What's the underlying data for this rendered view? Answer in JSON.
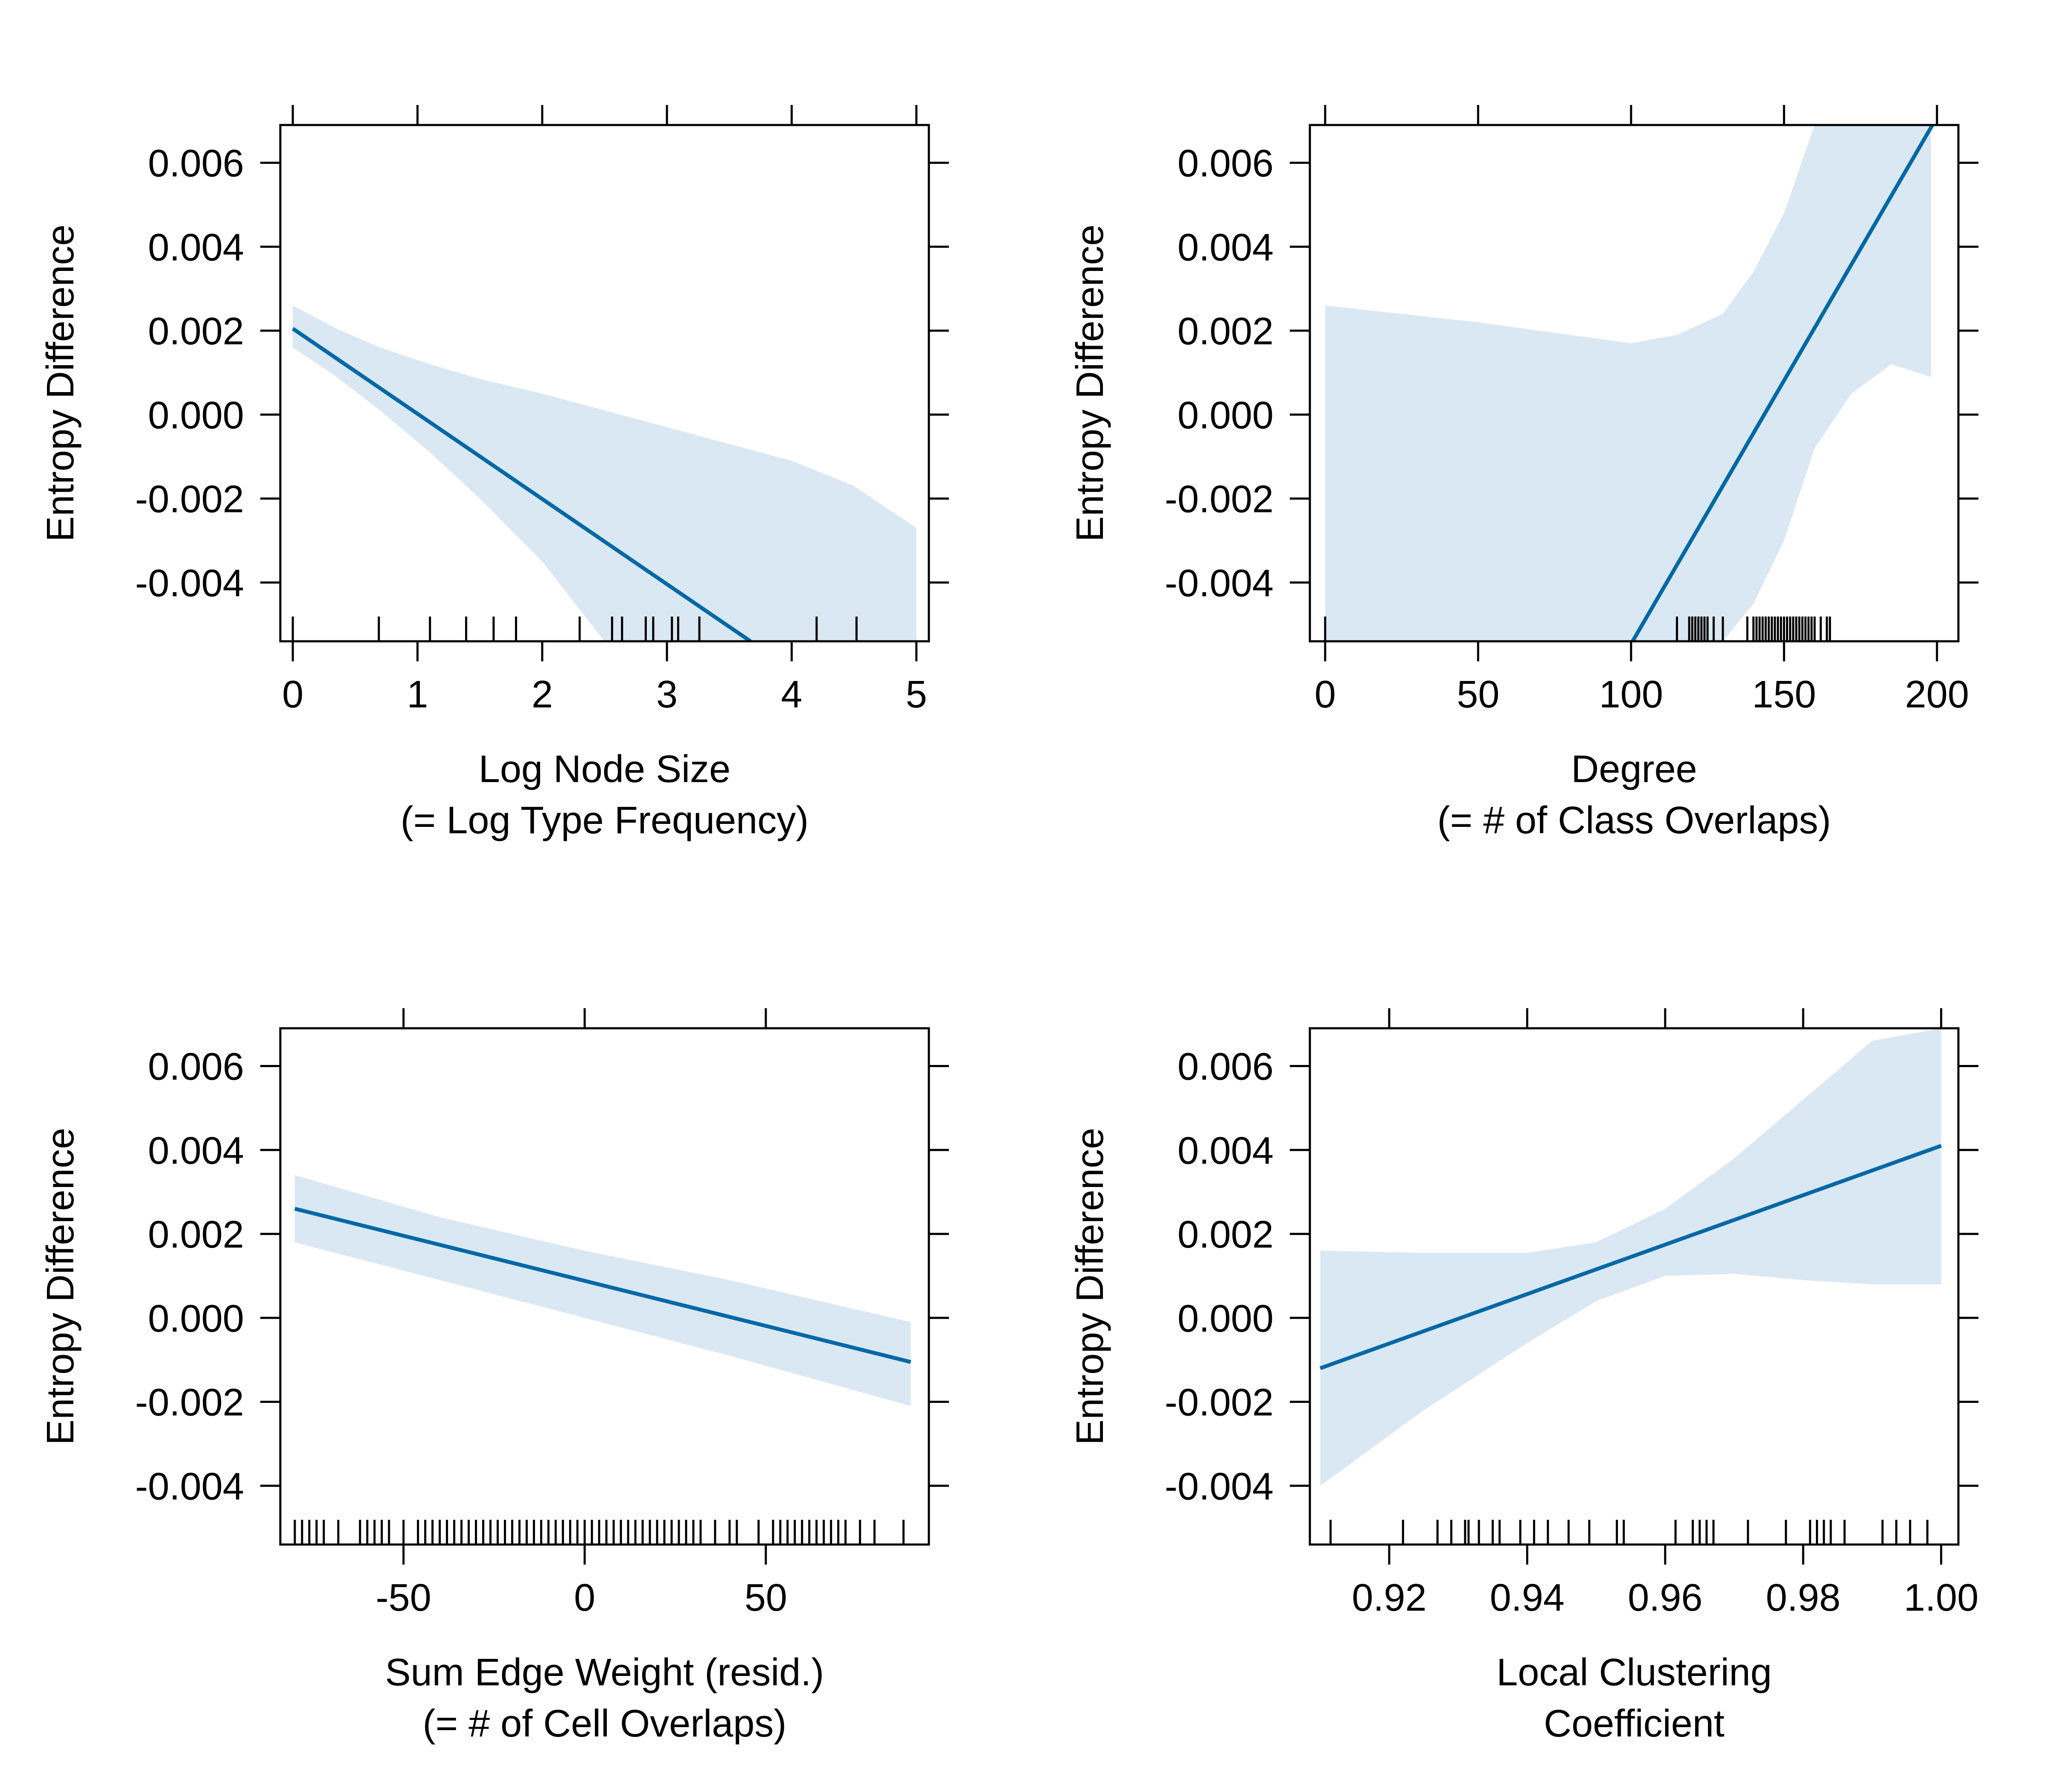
{
  "colors": {
    "line": "#0068A6",
    "band": "#DAE8F3",
    "frame": "#000000",
    "rug": "#000000"
  },
  "chart_data": [
    {
      "type": "line",
      "ylabel": "Entropy Difference",
      "xlabel": [
        "Log Node Size",
        "(= Log Type Frequency)"
      ],
      "xlim": [
        -0.1,
        5.1
      ],
      "ylim": [
        -0.0054,
        0.0069
      ],
      "xticks": [
        0,
        1,
        2,
        3,
        4,
        5
      ],
      "xtick_labels": [
        "0",
        "1",
        "2",
        "3",
        "4",
        "5"
      ],
      "yticks": [
        0.006,
        0.004,
        0.002,
        0.0,
        -0.002,
        -0.004
      ],
      "ytick_labels": [
        "0.006",
        "0.004",
        "0.002",
        "0.000",
        "-0.002",
        "-0.004"
      ],
      "fit": {
        "x": [
          0,
          3.67
        ],
        "y": [
          0.00205,
          -0.0054
        ]
      },
      "band": {
        "x": [
          0,
          0.35,
          0.7,
          1.1,
          1.5,
          2.0,
          2.5,
          3.0,
          3.5,
          4.0,
          4.5,
          5.0
        ],
        "upper": [
          0.0026,
          0.00205,
          0.0016,
          0.0012,
          0.00085,
          0.0005,
          0.0001,
          -0.0003,
          -0.0007,
          -0.0011,
          -0.0017,
          -0.0027
        ],
        "lower": [
          0.0016,
          0.0009,
          0.0001,
          -0.0009,
          -0.002,
          -0.0035,
          -0.0054,
          -0.0054,
          -0.0054,
          -0.0054,
          -0.0054,
          -0.0054
        ]
      },
      "rug": [
        0,
        0.69,
        1.1,
        1.39,
        1.61,
        1.79,
        2.3,
        2.56,
        2.64,
        2.83,
        2.89,
        3.04,
        3.09,
        3.26,
        4.2,
        4.52
      ]
    },
    {
      "type": "line",
      "ylabel": "Entropy Difference",
      "xlabel": [
        "Degree",
        "(= # of Class Overlaps)"
      ],
      "xlim": [
        -5,
        207
      ],
      "ylim": [
        -0.0054,
        0.0069
      ],
      "xticks": [
        0,
        50,
        100,
        150,
        200
      ],
      "xtick_labels": [
        "0",
        "50",
        "100",
        "150",
        "200"
      ],
      "yticks": [
        0.006,
        0.004,
        0.002,
        0.0,
        -0.002,
        -0.004
      ],
      "ytick_labels": [
        "0.006",
        "0.004",
        "0.002",
        "0.000",
        "-0.002",
        "-0.004"
      ],
      "fit": {
        "x": [
          100.5,
          198.5
        ],
        "y": [
          -0.0054,
          0.0069
        ]
      },
      "band": {
        "x": [
          0,
          50,
          90,
          100,
          115,
          130,
          140,
          150,
          160,
          172,
          185,
          198
        ],
        "upper": [
          0.0026,
          0.0022,
          0.0018,
          0.0017,
          0.0019,
          0.0024,
          0.0034,
          0.0048,
          0.0069,
          0.0069,
          0.0069,
          0.0069
        ],
        "lower": [
          -0.0054,
          -0.0054,
          -0.0054,
          -0.0054,
          -0.0054,
          -0.0054,
          -0.0045,
          -0.003,
          -0.0008,
          0.0005,
          0.0012,
          0.0009
        ]
      },
      "rug": [
        0,
        115,
        119,
        120,
        121,
        122,
        123,
        124,
        125,
        127,
        130,
        138,
        140,
        141,
        142,
        143,
        144,
        145,
        146,
        147,
        148,
        149,
        150,
        151,
        152,
        153,
        154,
        155,
        156,
        157,
        158,
        159,
        160,
        162,
        164,
        165
      ]
    },
    {
      "type": "line",
      "ylabel": "Entropy Difference",
      "xlabel": [
        "Sum Edge Weight (resid.)",
        "(= # of Cell Overlaps)"
      ],
      "xlim": [
        -84,
        95
      ],
      "ylim": [
        -0.0054,
        0.0069
      ],
      "xticks": [
        -50,
        0,
        50
      ],
      "xtick_labels": [
        "-50",
        "0",
        "50"
      ],
      "yticks": [
        0.006,
        0.004,
        0.002,
        0.0,
        -0.002,
        -0.004
      ],
      "ytick_labels": [
        "0.006",
        "0.004",
        "0.002",
        "0.000",
        "-0.002",
        "-0.004"
      ],
      "fit": {
        "x": [
          -80,
          90
        ],
        "y": [
          0.0026,
          -0.00105
        ]
      },
      "band": {
        "x": [
          -80,
          -40,
          0,
          40,
          90
        ],
        "upper": [
          0.0034,
          0.0024,
          0.0016,
          0.0009,
          -0.0001
        ],
        "lower": [
          0.0018,
          0.0009,
          0.0,
          -0.0009,
          -0.0021
        ]
      },
      "rug": [
        -80,
        -78,
        -76,
        -74,
        -72,
        -68,
        -62,
        -60,
        -58,
        -56,
        -54,
        -50,
        -46,
        -44,
        -42,
        -40,
        -38,
        -36,
        -34,
        -32,
        -30,
        -28,
        -26,
        -24,
        -22,
        -20,
        -18,
        -16,
        -14,
        -12,
        -10,
        -8,
        -6,
        -4,
        -2,
        0,
        2,
        4,
        6,
        8,
        10,
        12,
        14,
        16,
        18,
        20,
        22,
        24,
        26,
        28,
        30,
        32,
        36,
        40,
        42,
        48,
        52,
        54,
        56,
        58,
        60,
        62,
        64,
        66,
        68,
        70,
        72,
        76,
        80,
        88
      ]
    },
    {
      "type": "line",
      "ylabel": "Entropy Difference",
      "xlabel": [
        "Local Clustering",
        "Coefficient"
      ],
      "xlim": [
        0.9085,
        1.0025
      ],
      "ylim": [
        -0.0054,
        0.0069
      ],
      "xticks": [
        0.92,
        0.94,
        0.96,
        0.98,
        1.0
      ],
      "xtick_labels": [
        "0.92",
        "0.94",
        "0.96",
        "0.98",
        "1.00"
      ],
      "yticks": [
        0.006,
        0.004,
        0.002,
        0.0,
        -0.002,
        -0.004
      ],
      "ytick_labels": [
        "0.006",
        "0.004",
        "0.002",
        "0.000",
        "-0.002",
        "-0.004"
      ],
      "fit": {
        "x": [
          0.91,
          1.0
        ],
        "y": [
          -0.0012,
          0.0041
        ]
      },
      "band": {
        "x": [
          0.91,
          0.925,
          0.94,
          0.95,
          0.96,
          0.97,
          0.98,
          0.99,
          1.0
        ],
        "upper": [
          0.0016,
          0.00155,
          0.00155,
          0.0018,
          0.0026,
          0.0038,
          0.0052,
          0.0066,
          0.0069
        ],
        "lower": [
          -0.004,
          -0.0022,
          -0.0006,
          0.0004,
          0.001,
          0.00105,
          0.0009,
          0.0008,
          0.0008
        ]
      },
      "rug": [
        0.9115,
        0.922,
        0.927,
        0.929,
        0.931,
        0.9315,
        0.933,
        0.935,
        0.936,
        0.939,
        0.941,
        0.943,
        0.946,
        0.949,
        0.953,
        0.954,
        0.9615,
        0.964,
        0.965,
        0.966,
        0.967,
        0.972,
        0.9775,
        0.981,
        0.982,
        0.983,
        0.984,
        0.986,
        0.9915,
        0.9935,
        0.9955,
        0.998
      ]
    }
  ]
}
